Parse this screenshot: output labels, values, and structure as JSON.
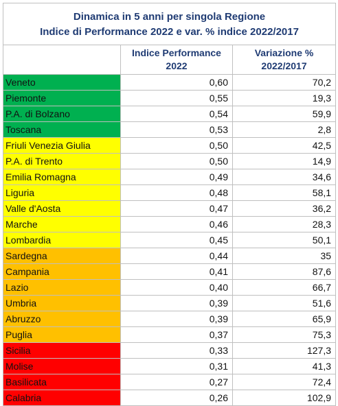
{
  "title": {
    "line1": "Dinamica in 5 anni per singola Regione",
    "line2": "Indice di Performance 2022 e var. % indice 2022/2017"
  },
  "headers": {
    "region": "",
    "index_line1": "Indice Performance",
    "index_line2": "2022",
    "var_line1": "Variazione %",
    "var_line2": "2022/2017"
  },
  "colors": {
    "group_1": "#00b050",
    "group_2": "#ffff00",
    "group_3": "#ffc000",
    "group_4": "#ff0000",
    "title_text": "#1f3b73"
  },
  "rows": [
    {
      "region": "Veneto",
      "index": "0,60",
      "variation": "70,2",
      "group": 1
    },
    {
      "region": "Piemonte",
      "index": "0,55",
      "variation": "19,3",
      "group": 1
    },
    {
      "region": "P.A. di Bolzano",
      "index": "0,54",
      "variation": "59,9",
      "group": 1
    },
    {
      "region": "Toscana",
      "index": "0,53",
      "variation": "2,8",
      "group": 1
    },
    {
      "region": "Friuli Venezia Giulia",
      "index": "0,50",
      "variation": "42,5",
      "group": 2
    },
    {
      "region": "P.A. di Trento",
      "index": "0,50",
      "variation": "14,9",
      "group": 2
    },
    {
      "region": "Emilia Romagna",
      "index": "0,49",
      "variation": "34,6",
      "group": 2
    },
    {
      "region": "Liguria",
      "index": "0,48",
      "variation": "58,1",
      "group": 2
    },
    {
      "region": "Valle d'Aosta",
      "index": "0,47",
      "variation": "36,2",
      "group": 2
    },
    {
      "region": "Marche",
      "index": "0,46",
      "variation": "28,3",
      "group": 2
    },
    {
      "region": "Lombardia",
      "index": "0,45",
      "variation": "50,1",
      "group": 2
    },
    {
      "region": "Sardegna",
      "index": "0,44",
      "variation": "35",
      "group": 3
    },
    {
      "region": "Campania",
      "index": "0,41",
      "variation": "87,6",
      "group": 3
    },
    {
      "region": "Lazio",
      "index": "0,40",
      "variation": "66,7",
      "group": 3
    },
    {
      "region": "Umbria",
      "index": "0,39",
      "variation": "51,6",
      "group": 3
    },
    {
      "region": "Abruzzo",
      "index": "0,39",
      "variation": "65,9",
      "group": 3
    },
    {
      "region": "Puglia",
      "index": "0,37",
      "variation": "75,3",
      "group": 3
    },
    {
      "region": "Sicilia",
      "index": "0,33",
      "variation": "127,3",
      "group": 4
    },
    {
      "region": "Molise",
      "index": "0,31",
      "variation": "41,3",
      "group": 4
    },
    {
      "region": "Basilicata",
      "index": "0,27",
      "variation": "72,4",
      "group": 4
    },
    {
      "region": "Calabria",
      "index": "0,26",
      "variation": "102,9",
      "group": 4
    }
  ]
}
